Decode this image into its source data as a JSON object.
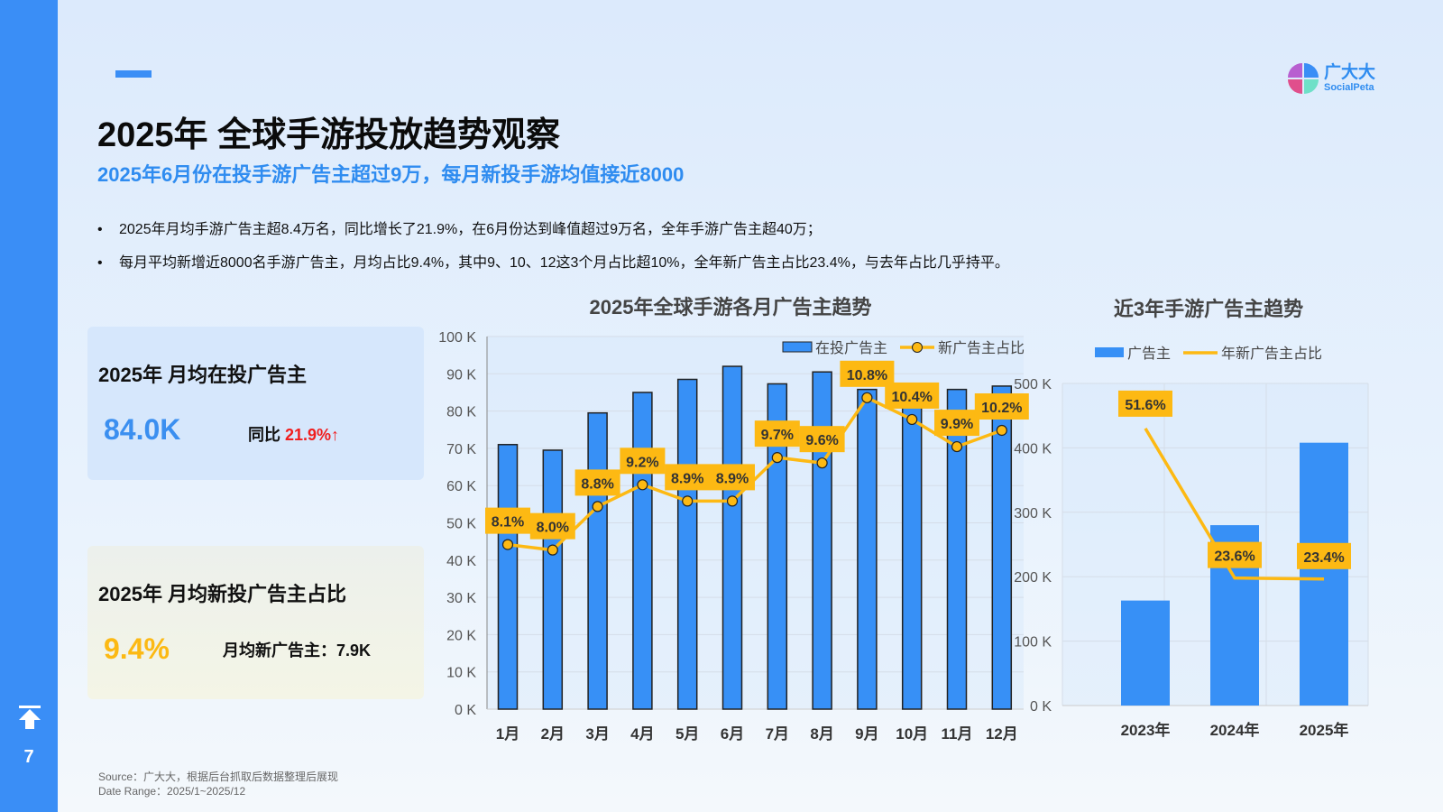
{
  "page_number": "7",
  "logo": {
    "cn": "广大大",
    "en": "SocialPeta"
  },
  "title": "2025年 全球手游投放趋势观察",
  "subtitle": "2025年6月份在投手游广告主超过9万，每月新投手游均值接近8000",
  "bullets": [
    "2025年月均手游广告主超8.4万名，同比增长了21.9%，在6月份达到峰值超过9万名，全年手游广告主超40万；",
    "每月平均新增近8000名手游广告主，月均占比9.4%，其中9、10、12这3个月占比超10%，全年新广告主占比23.4%，与去年占比几乎持平。"
  ],
  "bullet_symbol": "•",
  "card1": {
    "title": "2025年  月均在投广告主",
    "value": "84.0K",
    "yoy_label": "同比",
    "yoy_value": "21.9%↑"
  },
  "card2": {
    "title": "2025年  月均新投广告主占比",
    "value": "9.4%",
    "side": "月均新广告主：7.9K"
  },
  "source": "Source：广大大，根据后台抓取后数据整理后展现",
  "date_range": "Date Range：2025/1~2025/12",
  "colors": {
    "blue": "#3790f6",
    "yellow": "#fdb913",
    "accent": "#2f8cf0"
  },
  "chart_data": [
    {
      "type": "bar+line",
      "title": "2025年全球手游各月广告主趋势",
      "categories": [
        "1月",
        "2月",
        "3月",
        "4月",
        "5月",
        "6月",
        "7月",
        "8月",
        "9月",
        "10月",
        "11月",
        "12月"
      ],
      "series": [
        {
          "name": "在投广告主",
          "type": "bar",
          "values": [
            71,
            69.5,
            79.5,
            85,
            88.5,
            92,
            87.3,
            90.5,
            85.8,
            87,
            85.8,
            86.7
          ]
        },
        {
          "name": "新广告主占比",
          "type": "line",
          "values": [
            8.1,
            8.0,
            8.8,
            9.2,
            8.9,
            8.9,
            9.7,
            9.6,
            10.8,
            10.4,
            9.9,
            10.2
          ],
          "labels": [
            "8.1%",
            "8.0%",
            "8.8%",
            "9.2%",
            "8.9%",
            "8.9%",
            "9.7%",
            "9.6%",
            "10.8%",
            "10.4%",
            "9.9%",
            "10.2%"
          ]
        }
      ],
      "yticks": [
        "0 K",
        "10 K",
        "20 K",
        "30 K",
        "40 K",
        "50 K",
        "60 K",
        "70 K",
        "80 K",
        "90 K",
        "100 K"
      ],
      "ylim": [
        0,
        100
      ],
      "yunit": "K",
      "legend": "top-right",
      "grid": true
    },
    {
      "type": "bar+line",
      "title": "近3年手游广告主趋势",
      "categories": [
        "2023年",
        "2024年",
        "2025年"
      ],
      "series": [
        {
          "name": "广告主",
          "type": "bar",
          "values": [
            163,
            280,
            408
          ]
        },
        {
          "name": "年新广告主占比",
          "type": "line",
          "values": [
            51.6,
            23.6,
            23.4
          ],
          "labels": [
            "51.6%",
            "23.6%",
            "23.4%"
          ]
        }
      ],
      "yticks": [
        "0 K",
        "100 K",
        "200 K",
        "300 K",
        "400 K",
        "500 K"
      ],
      "ylim": [
        0,
        500
      ],
      "yunit": "K",
      "legend": "top",
      "grid": true
    }
  ]
}
